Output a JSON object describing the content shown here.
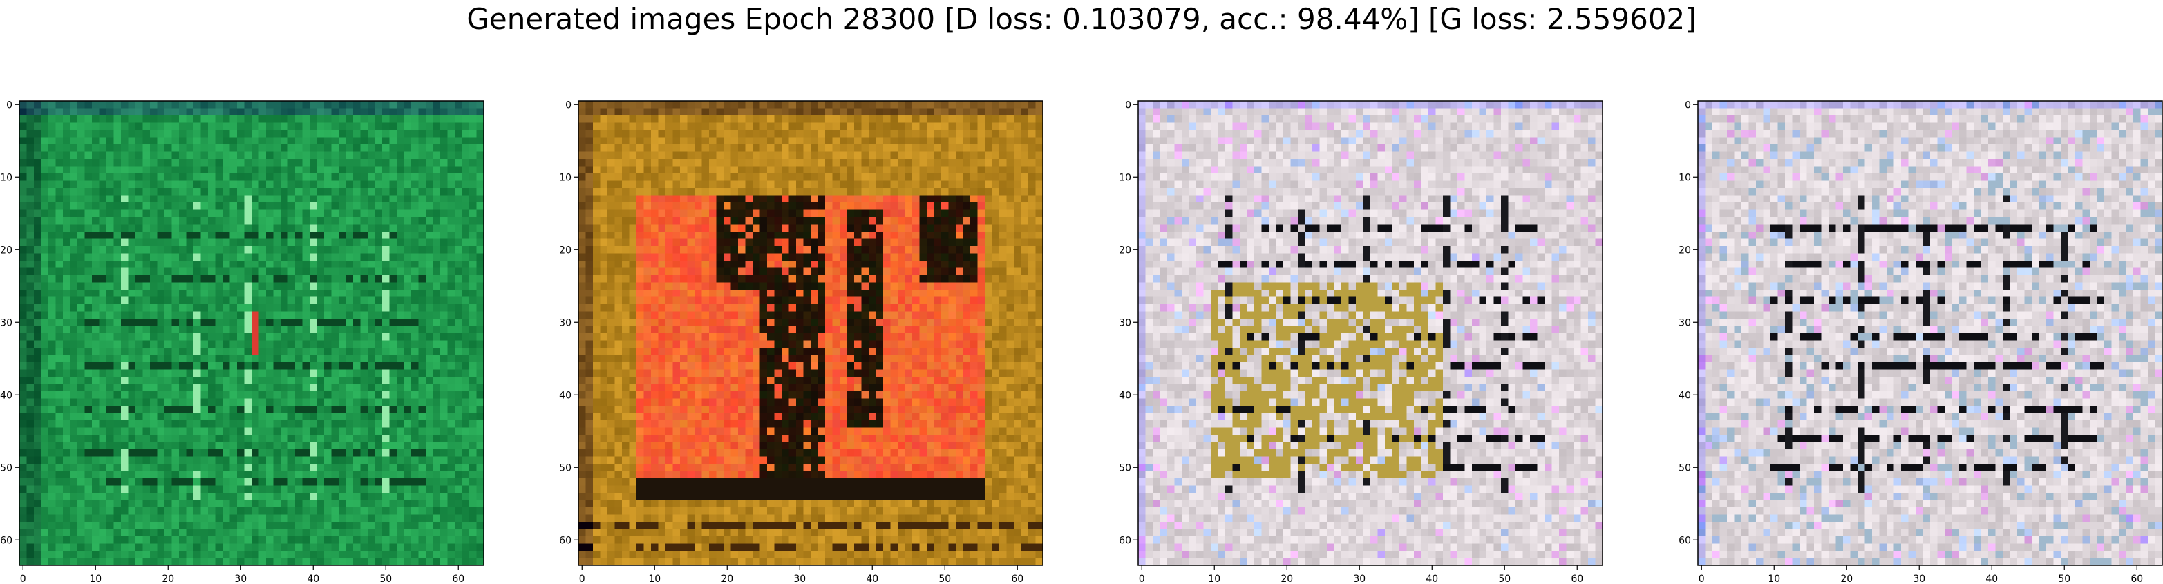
{
  "figure": {
    "title": "Generated images Epoch 28300 [D loss: 0.103079, acc.: 98.44%] [G loss: 2.559602]"
  },
  "chart_data": [
    {
      "type": "heatmap",
      "title": "",
      "xlabel": "",
      "ylabel": "",
      "xticks": [
        0,
        10,
        20,
        30,
        40,
        50,
        60
      ],
      "yticks": [
        0,
        10,
        20,
        30,
        40,
        50,
        60
      ],
      "xlim": [
        -0.5,
        63.5
      ],
      "ylim": [
        63.5,
        -0.5
      ],
      "grid": false,
      "content": "generated image: green textured pattern",
      "colors": {
        "base": "#1f9a4c",
        "light": "#4dd17f",
        "dark": "#0b4a24"
      }
    },
    {
      "type": "heatmap",
      "title": "",
      "xlabel": "",
      "ylabel": "",
      "xticks": [
        0,
        10,
        20,
        30,
        40,
        50,
        60
      ],
      "yticks": [
        0,
        10,
        20,
        30,
        40,
        50,
        60
      ],
      "xlim": [
        -0.5,
        63.5
      ],
      "ylim": [
        63.5,
        -0.5
      ],
      "grid": false,
      "content": "generated image: orange-red shapes on dark with ochre border",
      "colors": {
        "base": "#b9861a",
        "accent": "#ff4a2a",
        "dark": "#120a05"
      }
    },
    {
      "type": "heatmap",
      "title": "",
      "xlabel": "",
      "ylabel": "",
      "xticks": [
        0,
        10,
        20,
        30,
        40,
        50,
        60
      ],
      "yticks": [
        0,
        10,
        20,
        30,
        40,
        50,
        60
      ],
      "xlim": [
        -0.5,
        63.5
      ],
      "ylim": [
        63.5,
        -0.5
      ],
      "grid": false,
      "content": "generated image: pale grid pattern with dark strokes and olive patch",
      "colors": {
        "base": "#ddd6d8",
        "accent": "#b59a3c",
        "dark": "#141414"
      }
    },
    {
      "type": "heatmap",
      "title": "",
      "xlabel": "",
      "ylabel": "",
      "xticks": [
        0,
        10,
        20,
        30,
        40,
        50,
        60
      ],
      "yticks": [
        0,
        10,
        20,
        30,
        40,
        50,
        60
      ],
      "xlim": [
        -0.5,
        63.5
      ],
      "ylim": [
        63.5,
        -0.5
      ],
      "grid": false,
      "content": "generated image: pale grid pattern with dark strokes",
      "colors": {
        "base": "#dcd7db",
        "accent": "#9fb6c6",
        "dark": "#111111"
      }
    }
  ]
}
